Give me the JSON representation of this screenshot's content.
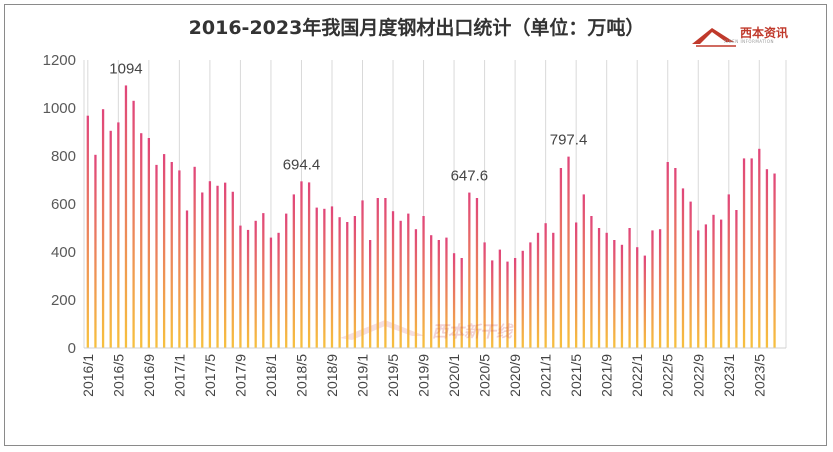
{
  "chart_data": {
    "type": "bar",
    "title": "2016-2023年我国月度钢材出口统计（单位：万吨）",
    "xlabel": "",
    "ylabel": "",
    "ylim": [
      0,
      1200
    ],
    "yticks": [
      0,
      200,
      400,
      600,
      800,
      1000,
      1200
    ],
    "grid": "vertical",
    "legend": "none",
    "colors": {
      "bar_top": "#e0457a",
      "bar_bottom": "#f5b43a"
    },
    "categories": [
      "2016/1",
      "2016/2",
      "2016/3",
      "2016/4",
      "2016/5",
      "2016/6",
      "2016/7",
      "2016/8",
      "2016/9",
      "2016/10",
      "2016/11",
      "2016/12",
      "2017/1",
      "2017/2",
      "2017/3",
      "2017/4",
      "2017/5",
      "2017/6",
      "2017/7",
      "2017/8",
      "2017/9",
      "2017/10",
      "2017/11",
      "2017/12",
      "2018/1",
      "2018/2",
      "2018/3",
      "2018/4",
      "2018/5",
      "2018/6",
      "2018/7",
      "2018/8",
      "2018/9",
      "2018/10",
      "2018/11",
      "2018/12",
      "2019/1",
      "2019/2",
      "2019/3",
      "2019/4",
      "2019/5",
      "2019/6",
      "2019/7",
      "2019/8",
      "2019/9",
      "2019/10",
      "2019/11",
      "2019/12",
      "2020/1",
      "2020/2",
      "2020/3",
      "2020/4",
      "2020/5",
      "2020/6",
      "2020/7",
      "2020/8",
      "2020/9",
      "2020/10",
      "2020/11",
      "2020/12",
      "2021/1",
      "2021/2",
      "2021/3",
      "2021/4",
      "2021/5",
      "2021/6",
      "2021/7",
      "2021/8",
      "2021/9",
      "2021/10",
      "2021/11",
      "2021/12",
      "2022/1",
      "2022/2",
      "2022/3",
      "2022/4",
      "2022/5",
      "2022/6",
      "2022/7",
      "2022/8",
      "2022/9",
      "2022/10",
      "2022/11",
      "2022/12",
      "2023/1",
      "2023/2",
      "2023/3",
      "2023/4",
      "2023/5",
      "2023/6",
      "2023/7",
      "2023/8"
    ],
    "xtick_labels": [
      "2016/1",
      "2016/5",
      "2016/9",
      "2017/1",
      "2017/5",
      "2017/9",
      "2018/1",
      "2018/5",
      "2018/9",
      "2019/1",
      "2019/5",
      "2019/9",
      "2020/1",
      "2020/5",
      "2020/9",
      "2021/1",
      "2021/5",
      "2021/9",
      "2022/1",
      "2022/5",
      "2022/9",
      "2023/1",
      "2023/5"
    ],
    "values": [
      968,
      805,
      995,
      905,
      940,
      1094,
      1030,
      895,
      875,
      763,
      808,
      775,
      740,
      573,
      755,
      648,
      695,
      676,
      689,
      651,
      510,
      492,
      530,
      562,
      460,
      480,
      560,
      640,
      694.4,
      690,
      585,
      580,
      590,
      545,
      525,
      550,
      615,
      450,
      625,
      625,
      570,
      530,
      560,
      495,
      550,
      470,
      450,
      460,
      395,
      375,
      647.6,
      625,
      440,
      365,
      410,
      360,
      375,
      405,
      440,
      480,
      520,
      480,
      750,
      797.4,
      523,
      640,
      550,
      500,
      480,
      450,
      430,
      500,
      420,
      385,
      490,
      495,
      775,
      750,
      665,
      610,
      490,
      515,
      555,
      535,
      640,
      575,
      790,
      790,
      830,
      745,
      727,
      0
    ],
    "annotations": [
      {
        "label": "1094",
        "index": 5
      },
      {
        "label": "694.4",
        "index": 28
      },
      {
        "label": "647.6",
        "index": 50
      },
      {
        "label": "797.4",
        "index": 63
      }
    ]
  },
  "logo": {
    "text": "西本资讯",
    "sub": "XIBEN INFORMATION"
  },
  "watermark": {
    "text": "西本新干线"
  }
}
